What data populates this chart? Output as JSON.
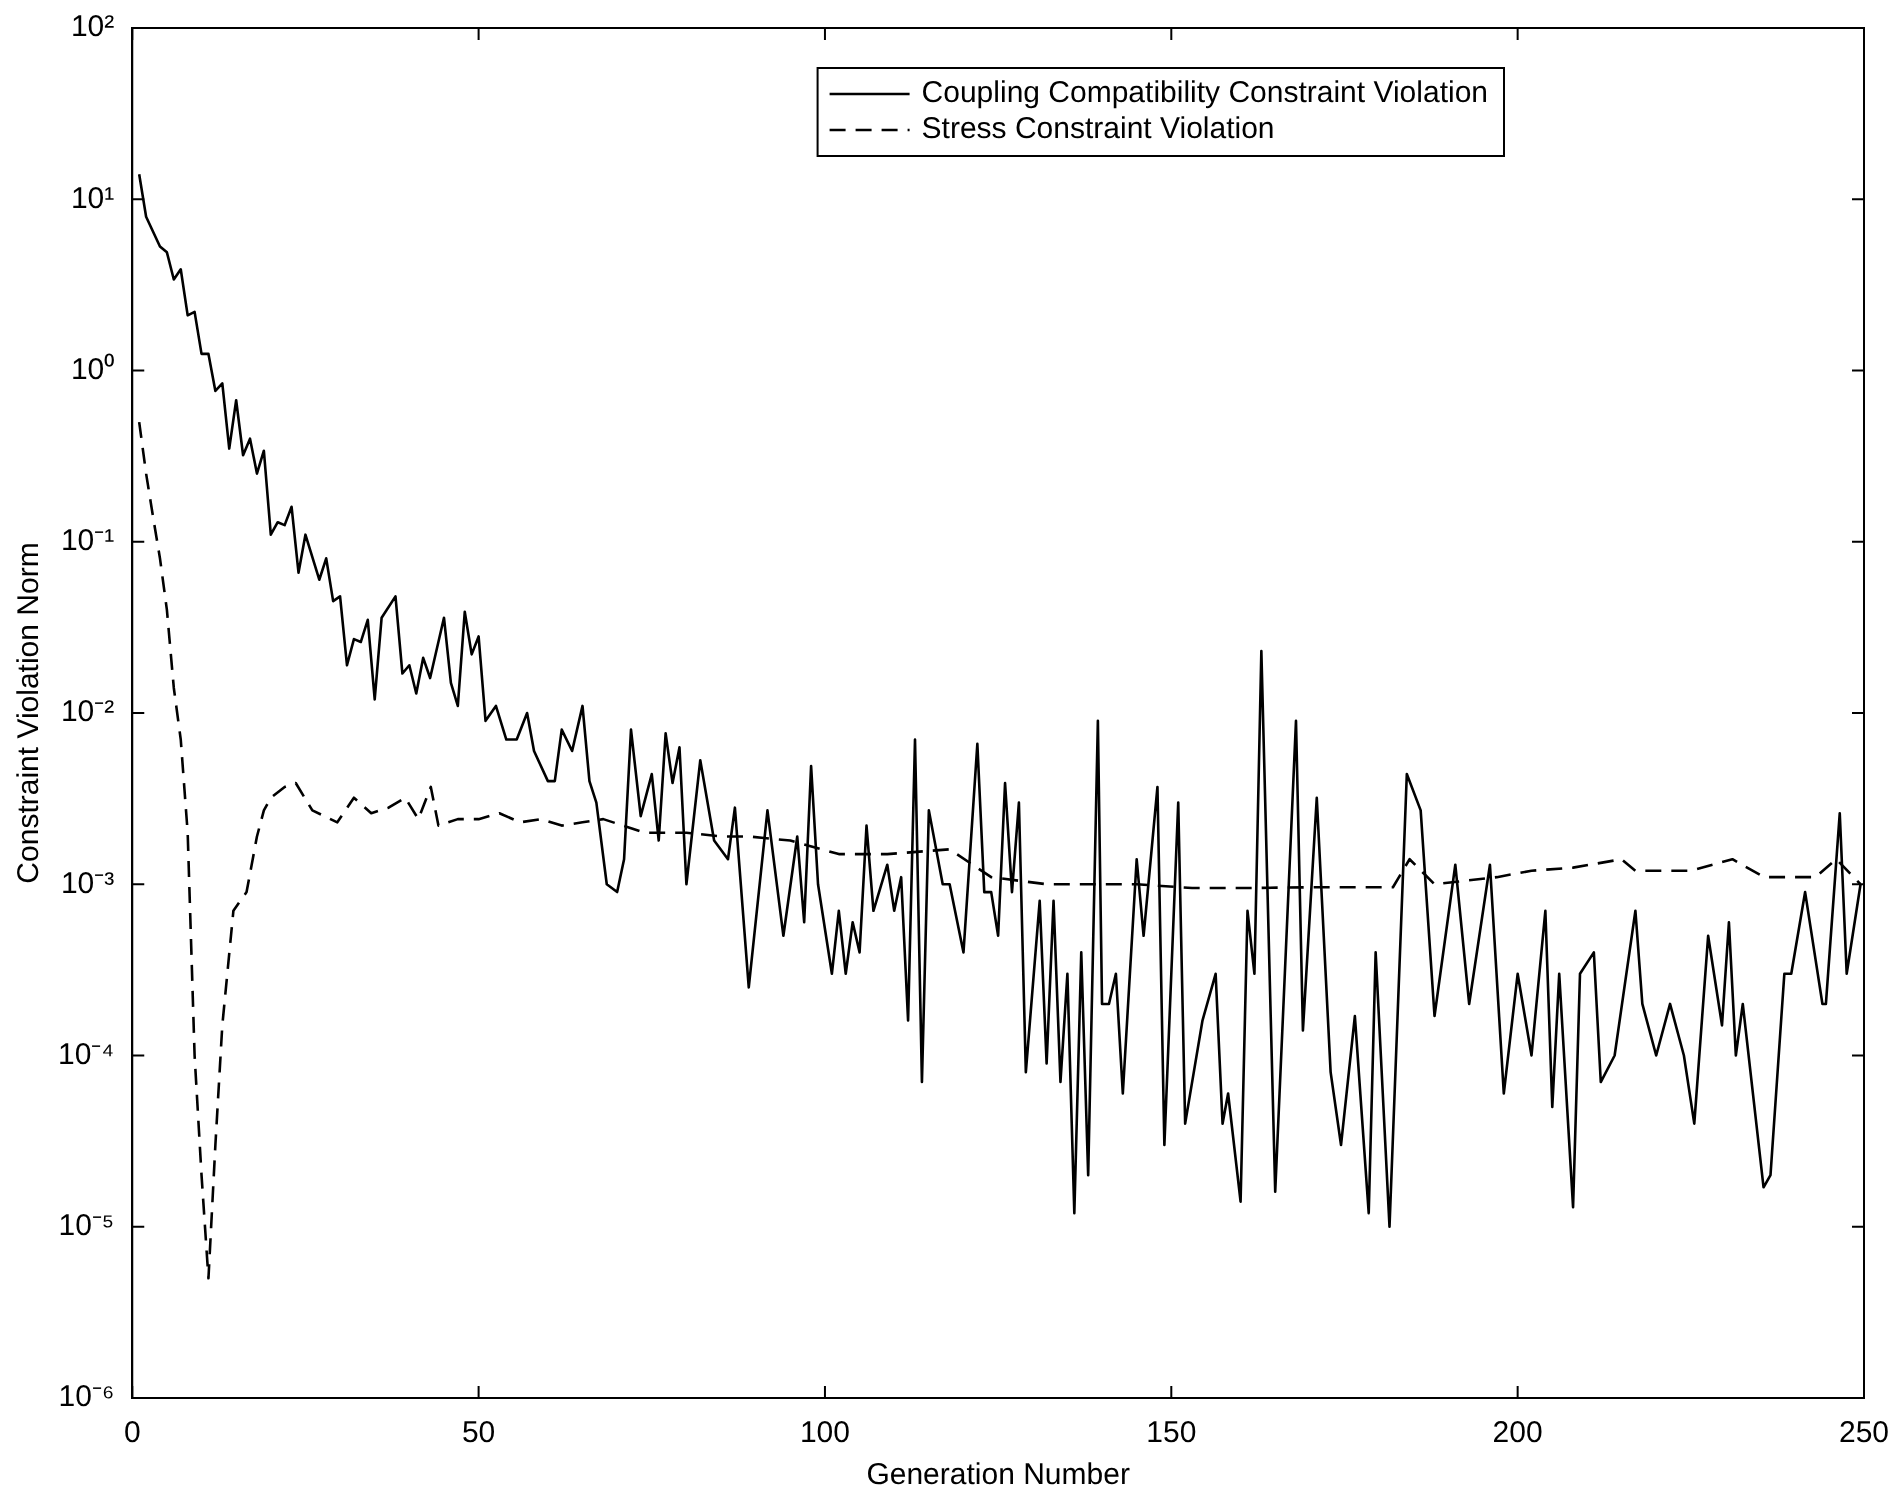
{
  "chart_data": {
    "type": "line",
    "xlabel": "Generation Number",
    "ylabel": "Constraint Violation Norm",
    "xlim": [
      0,
      250
    ],
    "xticks": [
      0,
      50,
      100,
      150,
      200,
      250
    ],
    "ylim": [
      1e-06,
      100
    ],
    "yticks": [
      {
        "value": 1e-06,
        "label": "10⁻⁶"
      },
      {
        "value": 1e-05,
        "label": "10⁻⁵"
      },
      {
        "value": 0.0001,
        "label": "10⁻⁴"
      },
      {
        "value": 0.001,
        "label": "10⁻³"
      },
      {
        "value": 0.01,
        "label": "10⁻²"
      },
      {
        "value": 0.1,
        "label": "10⁻¹"
      },
      {
        "value": 1,
        "label": "10⁰"
      },
      {
        "value": 10,
        "label": "10¹"
      },
      {
        "value": 100,
        "label": "10²"
      }
    ],
    "log": "y",
    "grid": false,
    "legend": "top right",
    "marker": "none",
    "series": [
      {
        "name": "Coupling Compatibility Constraint Violation",
        "color": "#000000",
        "line_style": "solid",
        "x": [
          1,
          2,
          4,
          5,
          6,
          7,
          8,
          9,
          10,
          11,
          12,
          13,
          14,
          15,
          16,
          17,
          18,
          19,
          20,
          21,
          22,
          23,
          24,
          25,
          27,
          28,
          29,
          30,
          31,
          32,
          33,
          34,
          35,
          36,
          38,
          39,
          40,
          41,
          42,
          43,
          45,
          46,
          47,
          48,
          49,
          50,
          51,
          52.5,
          54,
          55.5,
          57,
          58,
          60,
          61,
          62,
          63.5,
          65,
          66,
          67,
          68.5,
          70,
          71,
          72,
          73.4,
          75,
          76,
          77,
          78,
          79,
          80,
          82,
          84,
          86,
          87,
          89,
          91.7,
          94,
          96,
          97,
          98,
          99,
          101,
          102,
          103,
          104,
          105,
          106,
          107,
          109,
          110,
          111,
          112,
          113,
          114,
          115,
          117,
          118,
          120,
          122,
          123,
          124,
          125,
          126,
          127,
          128,
          129,
          131,
          132,
          133,
          134,
          135,
          136,
          137,
          138,
          139.4,
          140,
          141,
          142,
          143,
          145,
          146,
          148,
          149,
          151,
          152,
          154.5,
          156.4,
          157.4,
          158.2,
          160,
          161,
          162,
          163,
          165,
          168,
          169,
          171,
          173,
          174.5,
          176.5,
          178.5,
          179.5,
          181.5,
          184,
          186,
          188,
          191,
          193,
          196,
          198,
          200,
          202,
          204,
          205,
          206,
          208,
          209,
          211,
          212,
          214,
          217,
          218,
          220,
          222,
          224,
          225.5,
          227.5,
          229.5,
          230.5,
          231.5,
          232.5,
          235.5,
          236.5,
          238.5,
          239.5,
          241.5,
          244,
          244.5,
          246.5,
          247.5,
          249.5
        ],
        "values": [
          14,
          7.9,
          5.3,
          4.9,
          3.4,
          3.9,
          2.1,
          2.2,
          1.25,
          1.25,
          0.76,
          0.84,
          0.35,
          0.67,
          0.32,
          0.4,
          0.25,
          0.34,
          0.11,
          0.13,
          0.125,
          0.16,
          0.066,
          0.11,
          0.06,
          0.08,
          0.045,
          0.048,
          0.019,
          0.027,
          0.026,
          0.035,
          0.012,
          0.036,
          0.048,
          0.017,
          0.019,
          0.013,
          0.021,
          0.016,
          0.036,
          0.015,
          0.011,
          0.039,
          0.022,
          0.028,
          0.009,
          0.011,
          0.007,
          0.007,
          0.01,
          0.006,
          0.004,
          0.004,
          0.008,
          0.006,
          0.011,
          0.004,
          0.003,
          0.001,
          0.0009,
          0.0014,
          0.008,
          0.0025,
          0.0044,
          0.0018,
          0.0076,
          0.0039,
          0.0063,
          0.001,
          0.0053,
          0.0018,
          0.0014,
          0.0028,
          0.00025,
          0.0027,
          0.0005,
          0.0019,
          0.0006,
          0.0049,
          0.001,
          0.0003,
          0.0007,
          0.0003,
          0.0006,
          0.0004,
          0.0022,
          0.0007,
          0.0013,
          0.0007,
          0.0011,
          0.00016,
          0.007,
          7e-05,
          0.0027,
          0.001,
          0.001,
          0.0004,
          0.0066,
          0.0009,
          0.0009,
          0.0005,
          0.0039,
          0.0009,
          0.003,
          8e-05,
          0.0008,
          9e-05,
          0.0008,
          7e-05,
          0.0003,
          1.2e-05,
          0.0004,
          2e-05,
          0.009,
          0.0002,
          0.0002,
          0.0003,
          6e-05,
          0.0014,
          0.0005,
          0.0037,
          3e-05,
          0.003,
          4e-05,
          0.00016,
          0.0003,
          4e-05,
          6e-05,
          1.4e-05,
          0.0007,
          0.0003,
          0.023,
          1.6e-05,
          0.009,
          0.00014,
          0.0032,
          8e-05,
          3e-05,
          0.00017,
          1.2e-05,
          0.0004,
          1e-05,
          0.0044,
          0.0027,
          0.00017,
          0.0013,
          0.0002,
          0.0013,
          6e-05,
          0.0003,
          0.0001,
          0.0007,
          5e-05,
          0.0003,
          1.3e-05,
          0.0003,
          0.0004,
          7e-05,
          0.0001,
          0.0007,
          0.0002,
          0.0001,
          0.0002,
          0.0001,
          4e-05,
          0.0005,
          0.00015,
          0.0006,
          0.0001,
          0.0002,
          1.7e-05,
          2e-05,
          0.0003,
          0.0003,
          0.0009,
          0.0002,
          0.0002,
          0.0026,
          0.0003,
          0.001
        ]
      },
      {
        "name": "Stress Constraint Violation",
        "color": "#000000",
        "line_style": "dashed",
        "x": [
          1,
          2,
          3,
          4,
          5,
          6,
          7,
          8,
          9,
          10,
          11,
          12,
          13,
          14.6,
          16.5,
          18,
          19,
          20,
          22,
          23.6,
          26,
          29.6,
          32,
          34.5,
          37,
          39.4,
          41.3,
          43.1,
          44.2,
          47,
          50,
          53,
          56,
          59,
          62,
          65,
          68,
          74,
          80,
          85,
          89,
          95,
          102,
          109,
          118,
          124,
          132,
          139,
          145,
          153,
          160,
          170,
          182,
          184.4,
          188,
          197,
          202,
          208,
          215,
          217,
          225,
          231,
          235.6,
          243,
          246,
          249.5
        ],
        "values": [
          0.5,
          0.25,
          0.14,
          0.08,
          0.04,
          0.014,
          0.007,
          0.002,
          0.0001,
          2e-05,
          5e-06,
          3e-05,
          0.00015,
          0.0007,
          0.0009,
          0.0019,
          0.0027,
          0.0032,
          0.0037,
          0.0039,
          0.0027,
          0.0023,
          0.0032,
          0.0026,
          0.0028,
          0.0032,
          0.0024,
          0.0037,
          0.0022,
          0.0024,
          0.0024,
          0.0026,
          0.0023,
          0.0024,
          0.0022,
          0.0023,
          0.0024,
          0.002,
          0.002,
          0.0019,
          0.0019,
          0.0018,
          0.0015,
          0.0015,
          0.0016,
          0.0011,
          0.001,
          0.001,
          0.001,
          0.00095,
          0.00095,
          0.00096,
          0.00096,
          0.0014,
          0.001,
          0.0011,
          0.0012,
          0.00125,
          0.0014,
          0.0012,
          0.0012,
          0.0014,
          0.0011,
          0.0011,
          0.0014,
          0.001
        ]
      }
    ]
  }
}
